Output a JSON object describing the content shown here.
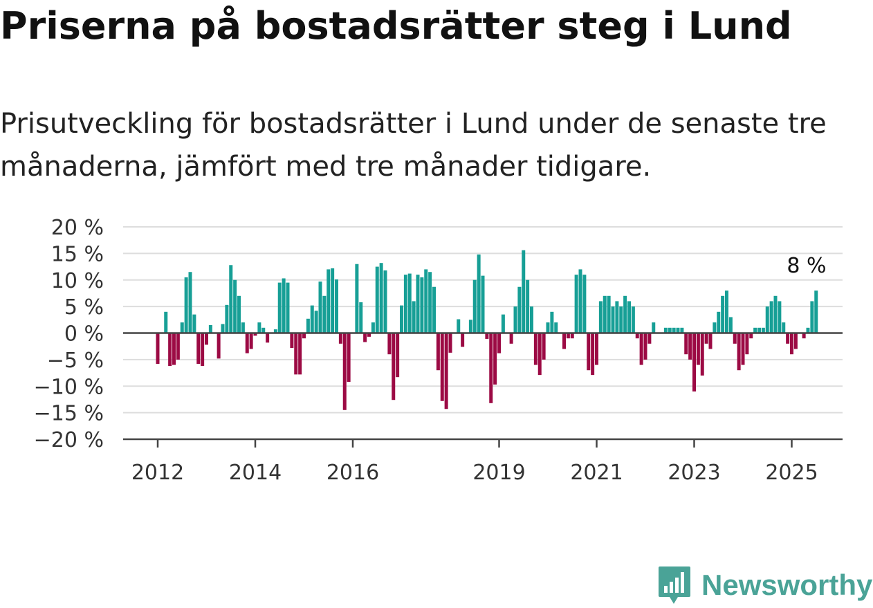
{
  "header": {
    "title": "Priserna på bostadsrätter steg i Lund",
    "subtitle": "Prisutveckling för bostadsrätter i Lund under de senaste tre månaderna, jämfört med tre månader tidigare."
  },
  "brand": {
    "name": "Newsworthy",
    "icon": "newsworthy-logo-icon",
    "color": "#4aa397"
  },
  "chart_data": {
    "type": "bar",
    "title": "Priserna på bostadsrätter steg i Lund",
    "subtitle": "Prisutveckling för bostadsrätter i Lund under de senaste tre månaderna, jämfört med tre månader tidigare.",
    "xlabel": "",
    "ylabel": "",
    "ylim": [
      -20,
      20
    ],
    "y_ticks": [
      20,
      15,
      10,
      5,
      0,
      -5,
      -10,
      -15,
      -20
    ],
    "y_tick_labels": [
      "20 %",
      "15 %",
      "10 %",
      "5 %",
      "0 %",
      "−5 %",
      "−10 %",
      "−15 %",
      "−20 %"
    ],
    "x_start": "2012-01",
    "x_ticks": [
      "2012",
      "2014",
      "2016",
      "2019",
      "2021",
      "2023",
      "2025"
    ],
    "grid": true,
    "colors": {
      "positive": "#179f96",
      "negative": "#9c0a44",
      "grid": "#dddddd",
      "axis": "#444444"
    },
    "annotation": {
      "label": "8 %",
      "value": 8,
      "date": "2025-05"
    },
    "series": [
      {
        "values": [
          -5.8,
          0,
          4,
          -6.2,
          -6,
          -5,
          2,
          10.5,
          11.5,
          3.5,
          -5.8,
          -6.2,
          -2.2,
          1.5,
          0,
          -4.8,
          1.7,
          5.3,
          12.8,
          10,
          7,
          2,
          -3.8,
          -3,
          -0.5,
          2,
          1,
          -1.8,
          0,
          0.7,
          9.5,
          10.3,
          9.5,
          -2.8,
          -7.8,
          -7.8,
          -1,
          2.7,
          5.2,
          4.2,
          9.7,
          7,
          12,
          12.2,
          10.1,
          -2,
          -14.5,
          -9.2,
          0,
          13,
          5.8,
          -1.7,
          -0.7,
          2,
          12.5,
          13.2,
          11.8,
          -4,
          -12.6,
          -8.3,
          5.2,
          11,
          11.2,
          6,
          11,
          10.5,
          12,
          11.5,
          8.7,
          -7,
          -12.8,
          -14.3,
          -3.7,
          0,
          2.6,
          -2.6,
          0,
          2.5,
          10,
          14.8,
          10.8,
          -1.1,
          -13.2,
          -9.7,
          -3.8,
          3.5,
          0,
          -2,
          5,
          8.7,
          15.6,
          10,
          5,
          -6,
          -7.9,
          -5,
          2,
          4,
          2,
          0,
          -3,
          -1,
          -1,
          11,
          12,
          11,
          -7,
          -7.9,
          -6,
          6,
          7,
          7,
          5,
          6,
          5,
          7,
          6,
          5,
          -1,
          -6,
          -5,
          -2,
          2,
          0,
          0,
          1,
          1,
          1,
          1,
          1,
          -4,
          -5,
          -11,
          -6,
          -8,
          -2,
          -3,
          2,
          4,
          7,
          8,
          3,
          -2,
          -7,
          -6,
          -4,
          -1,
          1,
          1,
          1,
          5,
          6,
          7,
          6,
          2,
          -2,
          -4,
          -3,
          0,
          -1,
          1,
          6,
          8
        ]
      }
    ]
  }
}
